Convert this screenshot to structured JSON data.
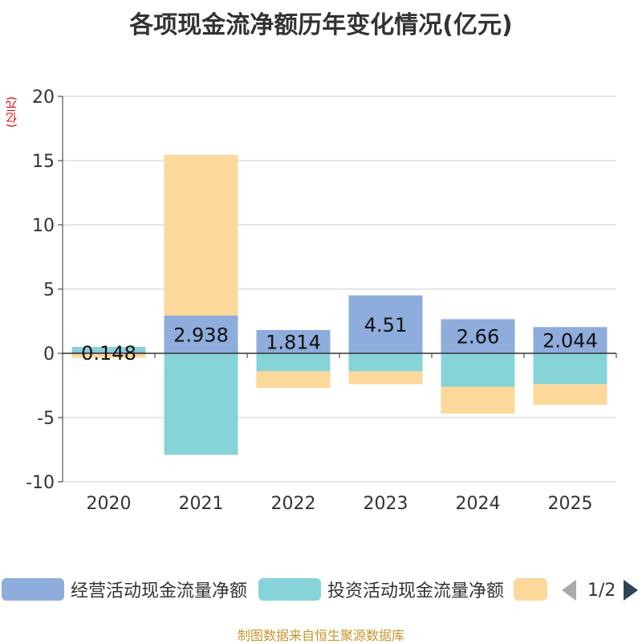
{
  "chart_data": {
    "type": "bar",
    "stacked": true,
    "title": "各项现金流净额历年变化情况(亿元)",
    "ylabel": "(亿元)",
    "categories": [
      "2020",
      "2021",
      "2022",
      "2023",
      "2024",
      "2025"
    ],
    "ylim": [
      -10,
      20
    ],
    "yticks": [
      -10,
      -5,
      0,
      5,
      10,
      15,
      20
    ],
    "grid": true,
    "legend_position": "bottom",
    "series": [
      {
        "name": "经营活动现金流量净额",
        "color": "#8eacdc",
        "values": [
          0.148,
          2.938,
          1.814,
          4.51,
          2.66,
          2.044
        ],
        "labels": [
          "0.148",
          "2.938",
          "1.814",
          "4.51",
          "2.66",
          "2.044"
        ]
      },
      {
        "name": "投资活动现金流量净额",
        "color": "#86d4d8",
        "values": [
          0.35,
          -7.9,
          -1.4,
          -1.4,
          -2.6,
          -2.4
        ]
      },
      {
        "name": "",
        "color": "#fdd89b",
        "values": [
          -0.35,
          12.5,
          -1.3,
          -1.0,
          -2.1,
          -1.6
        ]
      }
    ]
  },
  "legend": {
    "page_text": "1/2"
  },
  "source": "制图数据来自恒生聚源数据库"
}
